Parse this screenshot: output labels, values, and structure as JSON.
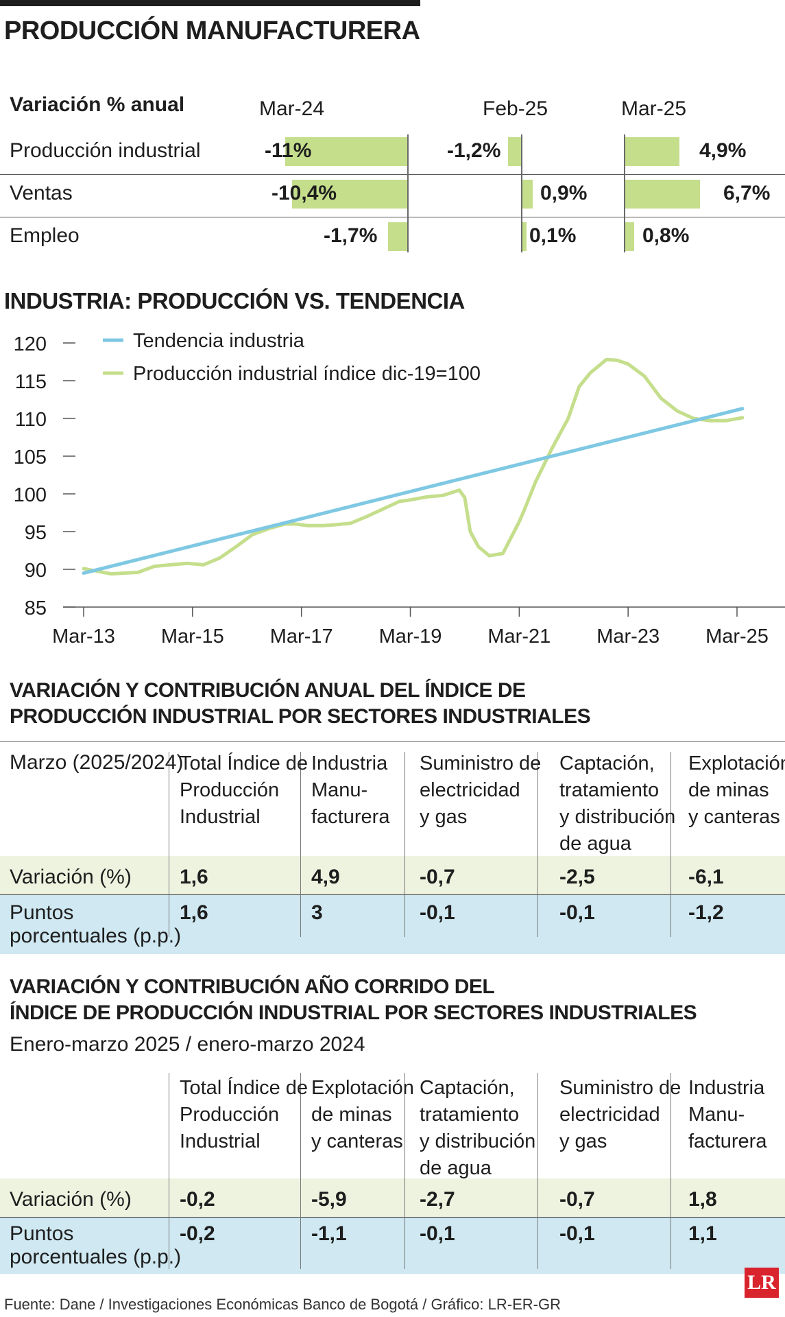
{
  "title": "PRODUCCIÓN MANUFACTURERA",
  "variacion": {
    "label": "Variación % anual",
    "periods": [
      "Mar-24",
      "Feb-25",
      "Mar-25"
    ],
    "rows": [
      {
        "name": "Producción industrial",
        "values": [
          -11,
          -1.2,
          4.9
        ],
        "labels": [
          "-11%",
          "-1,2%",
          "4,9%"
        ]
      },
      {
        "name": "Ventas",
        "values": [
          -10.4,
          0.9,
          6.7
        ],
        "labels": [
          "-10,4%",
          "0,9%",
          "6,7%"
        ]
      },
      {
        "name": "Empleo",
        "values": [
          -1.7,
          0.1,
          0.8
        ],
        "labels": [
          "-1,7%",
          "0,1%",
          "0,8%"
        ]
      }
    ],
    "bar_color": "#c5de8c"
  },
  "chart_data": {
    "type": "line",
    "title": "INDUSTRIA: PRODUCCIÓN VS. TENDENCIA",
    "xlabel": "",
    "ylabel": "",
    "ylim": [
      85,
      120
    ],
    "yticks": [
      120,
      115,
      110,
      105,
      100,
      95,
      90,
      85
    ],
    "xticks": [
      "Mar-13",
      "Mar-15",
      "Mar-17",
      "Mar-19",
      "Mar-21",
      "Mar-23",
      "Mar-25"
    ],
    "xlim": [
      2013.0,
      2025.9
    ],
    "legend_position": "top-left",
    "series": [
      {
        "name": "Tendencia industria",
        "color": "#7ec8e3",
        "x": [
          2013.0,
          2025.1
        ],
        "y": [
          89.5,
          111.3
        ]
      },
      {
        "name": "Producción industrial índice dic-19=100",
        "color": "#c5de8c",
        "x": [
          2013.0,
          2013.5,
          2014.0,
          2014.3,
          2014.6,
          2014.9,
          2015.2,
          2015.5,
          2015.8,
          2016.1,
          2016.4,
          2016.7,
          2016.9,
          2017.1,
          2017.4,
          2017.6,
          2017.9,
          2018.2,
          2018.5,
          2018.8,
          2019.0,
          2019.3,
          2019.6,
          2019.9,
          2020.0,
          2020.1,
          2020.25,
          2020.45,
          2020.7,
          2021.0,
          2021.1,
          2021.3,
          2021.6,
          2021.9,
          2022.1,
          2022.3,
          2022.6,
          2022.8,
          2023.0,
          2023.3,
          2023.6,
          2023.9,
          2024.2,
          2024.5,
          2024.8,
          2025.1
        ],
        "y": [
          90.1,
          89.4,
          89.6,
          90.4,
          90.6,
          90.8,
          90.6,
          91.5,
          93.0,
          94.6,
          95.4,
          96.0,
          96.0,
          95.8,
          95.8,
          95.9,
          96.1,
          97.0,
          98.0,
          99.0,
          99.2,
          99.6,
          99.8,
          100.5,
          99.5,
          95.0,
          93.0,
          91.8,
          92.1,
          96.3,
          98.0,
          101.6,
          106.0,
          110.0,
          114.2,
          116.0,
          117.8,
          117.7,
          117.2,
          115.6,
          112.7,
          111.0,
          110.0,
          109.7,
          109.7,
          110.1
        ]
      }
    ]
  },
  "tabla1": {
    "title_lines": [
      "VARIACIÓN Y CONTRIBUCIÓN ANUAL DEL ÍNDICE DE",
      "PRODUCCIÓN INDUSTRIAL POR SECTORES INDUSTRIALES"
    ],
    "corner": "Marzo (2025/2024)",
    "headers": [
      [
        "Total Índice de",
        "Producción",
        "Industrial"
      ],
      [
        "Industria",
        "Manu-",
        "facturera"
      ],
      [
        "Suministro de",
        "electricidad",
        "y gas"
      ],
      [
        "Captación,",
        "tratamiento",
        "y distribución",
        "de agua"
      ],
      [
        "Explotación",
        "de minas",
        "y canteras"
      ]
    ],
    "row1_label": "Variación (%)",
    "row1": [
      "1,6",
      "4,9",
      "-0,7",
      "-2,5",
      "-6,1"
    ],
    "row2_label": [
      "Puntos",
      "porcentuales (p.p.)"
    ],
    "row2": [
      "1,6",
      "3",
      "-0,1",
      "-0,1",
      "-1,2"
    ]
  },
  "tabla2": {
    "title_lines": [
      "VARIACIÓN Y CONTRIBUCIÓN AÑO CORRIDO DEL",
      "ÍNDICE DE PRODUCCIÓN INDUSTRIAL POR SECTORES INDUSTRIALES"
    ],
    "subtitle": "Enero-marzo 2025 / enero-marzo 2024",
    "headers": [
      [
        "Total Índice de",
        "Producción",
        "Industrial"
      ],
      [
        "Explotación",
        "de minas",
        "y canteras"
      ],
      [
        "Captación,",
        "tratamiento",
        "y distribución",
        "de agua"
      ],
      [
        "Suministro de",
        "electricidad",
        "y gas"
      ],
      [
        "Industria",
        "Manu-",
        "facturera"
      ]
    ],
    "row1_label": "Variación (%)",
    "row1": [
      "-0,2",
      "-5,9",
      "-2,7",
      "-0,7",
      "1,8"
    ],
    "row2_label": [
      "Puntos",
      "porcentuales (p.p.)"
    ],
    "row2": [
      "-0,2",
      "-1,1",
      "-0,1",
      "-0,1",
      "1,1"
    ]
  },
  "source": "Fuente: Dane / Investigaciones Económicas Banco de Bogotá / Gráfico: LR-ER-GR",
  "logo": "LR"
}
